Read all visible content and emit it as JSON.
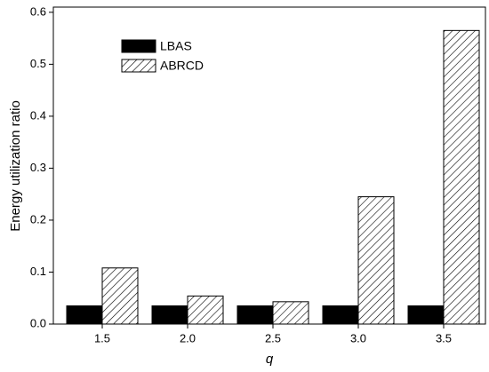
{
  "chart_data": {
    "type": "bar",
    "xlabel": "q",
    "ylabel": "Energy utilization ratio",
    "categories": [
      "1.5",
      "2.0",
      "2.5",
      "3.0",
      "3.5"
    ],
    "series": [
      {
        "name": "LBAS",
        "color": "#000000",
        "values": [
          0.035,
          0.035,
          0.035,
          0.035,
          0.035
        ]
      },
      {
        "name": "ABRCD",
        "color": "#000000",
        "pattern": "hatch",
        "values": [
          0.108,
          0.054,
          0.043,
          0.245,
          0.565
        ]
      }
    ],
    "ylim": [
      0,
      0.61
    ],
    "yticks": [
      {
        "value": 0,
        "label": "0.0"
      },
      0.1,
      0.2,
      0.3,
      0.4,
      0.5,
      0.6
    ],
    "grid": false,
    "legend": "upper left"
  }
}
